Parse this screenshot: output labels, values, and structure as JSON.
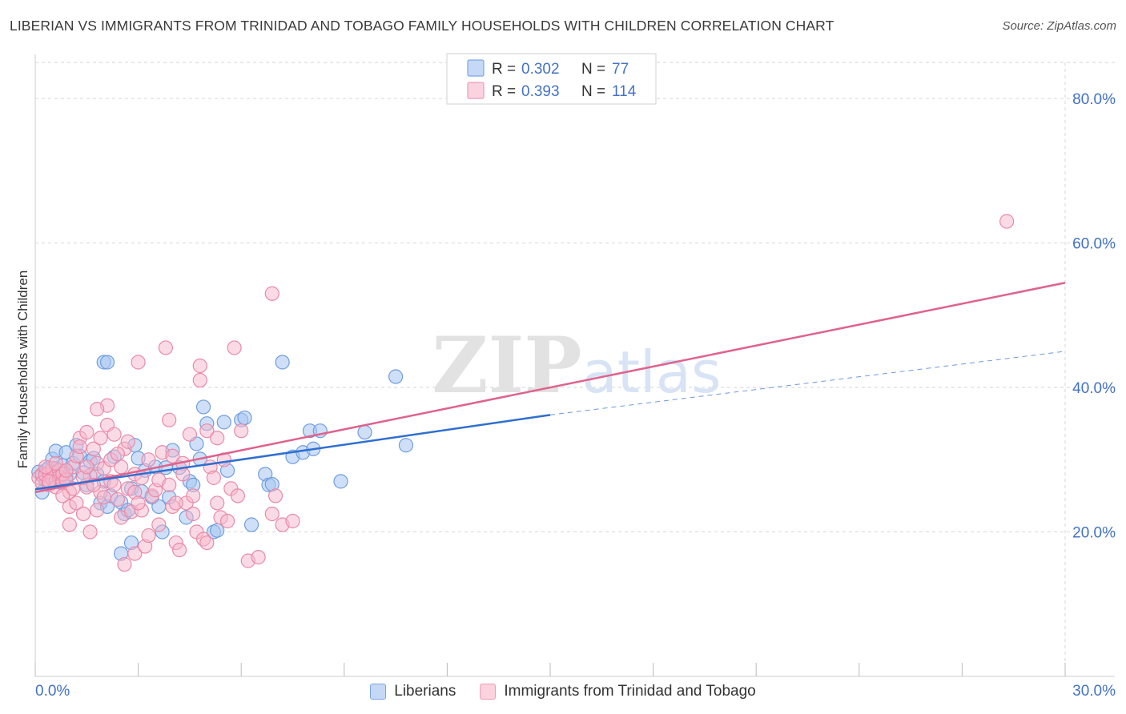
{
  "header": {
    "title": "LIBERIAN VS IMMIGRANTS FROM TRINIDAD AND TOBAGO FAMILY HOUSEHOLDS WITH CHILDREN CORRELATION CHART",
    "source": "Source: ZipAtlas.com"
  },
  "colors": {
    "blue_fill": "#a8c4f0",
    "blue_stroke": "#6f9ee0",
    "blue_line": "#2f6fd0",
    "pink_fill": "#f6b8cb",
    "pink_stroke": "#ea8aa8",
    "pink_line": "#e0628c",
    "axis_label": "#4472c4",
    "grid": "#d6d6d6"
  },
  "watermark": "ZIPatlas",
  "chart_data": {
    "type": "scatter",
    "title": "LIBERIAN VS IMMIGRANTS FROM TRINIDAD AND TOBAGO FAMILY HOUSEHOLDS WITH CHILDREN CORRELATION CHART",
    "xlabel": "",
    "ylabel": "Family Households with Children",
    "xlim": [
      0,
      30
    ],
    "ylim": [
      0,
      85
    ],
    "x_tick_labels": [
      "0.0%",
      "30.0%"
    ],
    "y_ticks": [
      20,
      40,
      60,
      80
    ],
    "y_tick_labels": [
      "20.0%",
      "40.0%",
      "60.0%",
      "80.0%"
    ],
    "grid": true,
    "legend_stats": [
      {
        "r_label": "R = ",
        "r_value": "0.302",
        "n_label": "N = ",
        "n_value": "77"
      },
      {
        "r_label": "R = ",
        "r_value": "0.393",
        "n_label": "N = ",
        "n_value": "114"
      }
    ],
    "series": [
      {
        "name": "Liberians",
        "color": "#a8c4f0",
        "trend": {
          "x0": 0,
          "y0": 25.9,
          "x1": 15.0,
          "y1": 36.2,
          "dashed_to_x": 30.0,
          "dashed_to_y": 45.0
        },
        "points": [
          [
            0.1,
            28.3
          ],
          [
            0.2,
            27.8
          ],
          [
            0.3,
            28.5
          ],
          [
            0.3,
            27.2
          ],
          [
            0.4,
            28.9
          ],
          [
            0.5,
            28.1
          ],
          [
            0.6,
            27.6
          ],
          [
            0.6,
            28.8
          ],
          [
            0.7,
            26.9
          ],
          [
            0.8,
            28.4
          ],
          [
            0.8,
            29.2
          ],
          [
            0.9,
            27.5
          ],
          [
            1.0,
            28.0
          ],
          [
            0.5,
            30.1
          ],
          [
            0.6,
            31.2
          ],
          [
            0.9,
            31.0
          ],
          [
            1.1,
            29.5
          ],
          [
            1.2,
            32.0
          ],
          [
            1.3,
            30.5
          ],
          [
            1.4,
            28.2
          ],
          [
            1.5,
            26.5
          ],
          [
            1.6,
            29.8
          ],
          [
            1.7,
            30.2
          ],
          [
            1.8,
            28.0
          ],
          [
            1.9,
            24.0
          ],
          [
            2.0,
            27.0
          ],
          [
            2.1,
            23.5
          ],
          [
            2.2,
            25.0
          ],
          [
            2.3,
            30.4
          ],
          [
            2.5,
            24.1
          ],
          [
            2.6,
            22.5
          ],
          [
            2.7,
            23.0
          ],
          [
            2.8,
            26.0
          ],
          [
            2.9,
            32.0
          ],
          [
            3.0,
            30.2
          ],
          [
            3.1,
            25.6
          ],
          [
            3.2,
            28.5
          ],
          [
            3.4,
            24.8
          ],
          [
            3.5,
            29.0
          ],
          [
            3.6,
            23.5
          ],
          [
            2.0,
            43.5
          ],
          [
            2.1,
            43.5
          ],
          [
            3.7,
            20.0
          ],
          [
            3.8,
            28.9
          ],
          [
            3.9,
            24.8
          ],
          [
            4.0,
            31.3
          ],
          [
            4.2,
            28.9
          ],
          [
            4.4,
            22.0
          ],
          [
            4.5,
            27.0
          ],
          [
            4.6,
            26.5
          ],
          [
            4.7,
            32.2
          ],
          [
            4.8,
            30.1
          ],
          [
            4.9,
            37.3
          ],
          [
            5.0,
            35.0
          ],
          [
            5.2,
            20.0
          ],
          [
            5.3,
            20.2
          ],
          [
            5.5,
            35.2
          ],
          [
            5.6,
            28.5
          ],
          [
            6.0,
            35.5
          ],
          [
            6.1,
            35.8
          ],
          [
            6.3,
            21.0
          ],
          [
            6.7,
            28.0
          ],
          [
            6.8,
            26.5
          ],
          [
            6.9,
            26.6
          ],
          [
            7.2,
            43.5
          ],
          [
            7.5,
            30.4
          ],
          [
            7.8,
            31.0
          ],
          [
            8.0,
            34.0
          ],
          [
            8.3,
            34.0
          ],
          [
            8.1,
            31.5
          ],
          [
            8.9,
            27.0
          ],
          [
            9.6,
            33.8
          ],
          [
            10.5,
            41.5
          ],
          [
            10.8,
            32.0
          ],
          [
            2.5,
            17.0
          ],
          [
            2.8,
            18.5
          ],
          [
            0.2,
            25.5
          ]
        ]
      },
      {
        "name": "Immigrants from Trinidad and Tobago",
        "color": "#f6b8cb",
        "trend": {
          "x0": 0,
          "y0": 25.5,
          "x1": 30.0,
          "y1": 54.5
        },
        "points": [
          [
            0.1,
            27.5
          ],
          [
            0.2,
            28.0
          ],
          [
            0.2,
            26.8
          ],
          [
            0.3,
            27.9
          ],
          [
            0.4,
            28.2
          ],
          [
            0.4,
            26.5
          ],
          [
            0.5,
            27.3
          ],
          [
            0.5,
            28.8
          ],
          [
            0.6,
            27.0
          ],
          [
            0.6,
            26.2
          ],
          [
            0.7,
            28.5
          ],
          [
            0.7,
            27.6
          ],
          [
            0.8,
            26.9
          ],
          [
            0.8,
            28.0
          ],
          [
            0.9,
            27.2
          ],
          [
            1.0,
            25.5
          ],
          [
            1.0,
            23.5
          ],
          [
            1.1,
            29.0
          ],
          [
            1.2,
            30.5
          ],
          [
            1.2,
            24.0
          ],
          [
            1.3,
            33.0
          ],
          [
            1.4,
            22.5
          ],
          [
            1.5,
            26.2
          ],
          [
            1.5,
            33.8
          ],
          [
            1.6,
            27.8
          ],
          [
            1.6,
            20.0
          ],
          [
            1.7,
            31.5
          ],
          [
            1.8,
            29.5
          ],
          [
            1.8,
            23.0
          ],
          [
            1.9,
            25.5
          ],
          [
            2.0,
            28.8
          ],
          [
            2.1,
            34.8
          ],
          [
            2.1,
            37.5
          ],
          [
            2.2,
            30.0
          ],
          [
            2.2,
            27.0
          ],
          [
            2.3,
            33.5
          ],
          [
            2.4,
            24.5
          ],
          [
            2.5,
            29.0
          ],
          [
            2.5,
            22.0
          ],
          [
            2.6,
            31.5
          ],
          [
            2.6,
            15.5
          ],
          [
            2.7,
            26.0
          ],
          [
            2.8,
            22.8
          ],
          [
            2.9,
            28.0
          ],
          [
            2.9,
            17.0
          ],
          [
            3.0,
            43.5
          ],
          [
            3.1,
            23.0
          ],
          [
            3.2,
            18.0
          ],
          [
            3.3,
            30.0
          ],
          [
            3.4,
            25.0
          ],
          [
            3.5,
            25.8
          ],
          [
            3.6,
            27.2
          ],
          [
            3.7,
            31.0
          ],
          [
            3.8,
            45.5
          ],
          [
            3.9,
            35.5
          ],
          [
            4.0,
            30.5
          ],
          [
            4.0,
            23.5
          ],
          [
            4.1,
            18.5
          ],
          [
            4.2,
            17.5
          ],
          [
            4.3,
            29.5
          ],
          [
            4.4,
            24.0
          ],
          [
            4.5,
            33.5
          ],
          [
            4.6,
            22.5
          ],
          [
            4.7,
            20.0
          ],
          [
            4.8,
            43.0
          ],
          [
            4.8,
            41.0
          ],
          [
            4.9,
            19.0
          ],
          [
            5.0,
            34.0
          ],
          [
            5.1,
            29.0
          ],
          [
            5.2,
            27.5
          ],
          [
            5.3,
            24.0
          ],
          [
            5.4,
            22.0
          ],
          [
            5.5,
            30.0
          ],
          [
            5.6,
            21.5
          ],
          [
            5.7,
            26.0
          ],
          [
            5.8,
            45.5
          ],
          [
            6.0,
            34.0
          ],
          [
            6.2,
            16.0
          ],
          [
            6.5,
            16.5
          ],
          [
            6.9,
            53.0
          ],
          [
            6.9,
            22.5
          ],
          [
            7.0,
            25.0
          ],
          [
            7.2,
            21.0
          ],
          [
            7.5,
            21.5
          ],
          [
            0.3,
            29.0
          ],
          [
            0.4,
            27.0
          ],
          [
            0.6,
            29.5
          ],
          [
            0.9,
            28.5
          ],
          [
            1.1,
            26.0
          ],
          [
            1.3,
            31.8
          ],
          [
            1.4,
            27.5
          ],
          [
            1.7,
            26.5
          ],
          [
            1.9,
            33.0
          ],
          [
            2.0,
            24.8
          ],
          [
            2.3,
            26.5
          ],
          [
            2.4,
            30.8
          ],
          [
            2.7,
            32.5
          ],
          [
            2.9,
            25.5
          ],
          [
            3.1,
            27.5
          ],
          [
            3.3,
            19.5
          ],
          [
            3.6,
            21.0
          ],
          [
            3.9,
            26.5
          ],
          [
            4.1,
            24.0
          ],
          [
            4.3,
            28.0
          ],
          [
            4.6,
            25.0
          ],
          [
            5.0,
            18.5
          ],
          [
            5.3,
            33.0
          ],
          [
            5.9,
            25.0
          ],
          [
            0.8,
            25.0
          ],
          [
            1.0,
            21.0
          ],
          [
            1.5,
            29.0
          ],
          [
            3.0,
            24.0
          ],
          [
            1.8,
            37.0
          ],
          [
            28.3,
            63.0
          ]
        ]
      }
    ]
  },
  "legend_bottom": [
    {
      "label": "Liberians"
    },
    {
      "label": "Immigrants from Trinidad and Tobago"
    }
  ]
}
